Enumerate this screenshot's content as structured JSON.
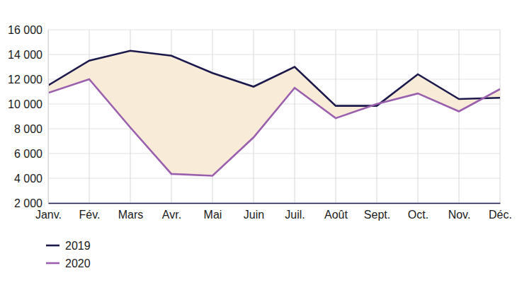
{
  "chart_data": {
    "type": "line",
    "categories": [
      "Janv.",
      "Fév.",
      "Mars",
      "Avr.",
      "Mai",
      "Juin",
      "Juil.",
      "Août",
      "Sept.",
      "Oct.",
      "Nov.",
      "Déc."
    ],
    "series": [
      {
        "name": "2019",
        "color": "#1c1a4c",
        "values": [
          11500,
          13500,
          14300,
          13900,
          12500,
          11400,
          13000,
          9850,
          9850,
          12400,
          10400,
          10500
        ]
      },
      {
        "name": "2020",
        "color": "#9a5fad",
        "values": [
          10900,
          12000,
          8100,
          4350,
          4200,
          7300,
          11300,
          8850,
          10000,
          10850,
          9400,
          11200
        ]
      }
    ],
    "ylim": [
      2000,
      16000
    ],
    "yticks": [
      {
        "value": 2000,
        "label": "2 000"
      },
      {
        "value": 4000,
        "label": "4 000"
      },
      {
        "value": 6000,
        "label": "6 000"
      },
      {
        "value": 8000,
        "label": "8 000"
      },
      {
        "value": 10000,
        "label": "10 000"
      },
      {
        "value": 12000,
        "label": "12 000"
      },
      {
        "value": 14000,
        "label": "14 000"
      },
      {
        "value": 16000,
        "label": "16 000"
      }
    ],
    "grid": true,
    "legend": "bottom-left"
  }
}
